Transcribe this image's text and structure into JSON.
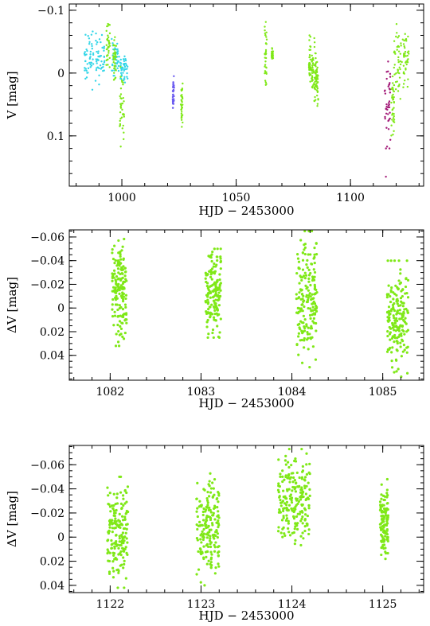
{
  "chart_data": [
    {
      "type": "scatter",
      "title": "",
      "xlabel": "HJD − 2453000",
      "ylabel": "V [mag]",
      "xlim": [
        977,
        1132
      ],
      "ylim": [
        0.18,
        -0.11
      ],
      "y_inverted": true,
      "grid": false,
      "legend": "none",
      "x_ticks": [
        1000,
        1050,
        1100
      ],
      "x_tick_labels": [
        "1000",
        "1050",
        "1100"
      ],
      "y_ticks": [
        -0.1,
        0,
        0.1
      ],
      "y_tick_labels": [
        "−0.1",
        "0",
        "0.1"
      ],
      "series": [
        {
          "color": "#33d6e8",
          "clusters": [
            {
              "x0": 983.5,
              "x1": 987.5,
              "y": [
                -0.08,
                0.03
              ]
            },
            {
              "x0": 988.5,
              "x1": 992.5,
              "y": [
                -0.07,
                0.025
              ]
            },
            {
              "x0": 995.5,
              "x1": 998.8,
              "y": [
                -0.06,
                0.01
              ]
            },
            {
              "x0": 999.2,
              "x1": 1002.5,
              "y": [
                -0.03,
                0.015
              ]
            }
          ]
        },
        {
          "color": "#7fe817",
          "clusters": [
            {
              "x0": 993.2,
              "x1": 994.8,
              "y": [
                -0.095,
                0.01
              ]
            },
            {
              "x0": 996.2,
              "x1": 997.5,
              "y": [
                -0.06,
                0.02
              ]
            },
            {
              "x0": 999.0,
              "x1": 1001.0,
              "y": [
                -0.01,
                0.14
              ]
            },
            {
              "x0": 1025.8,
              "x1": 1026.6,
              "y": [
                0.01,
                0.1
              ]
            },
            {
              "x0": 1062.5,
              "x1": 1063.4,
              "y": [
                -0.1,
                0.05
              ]
            },
            {
              "x0": 1065.5,
              "x1": 1066.2,
              "y": [
                -0.04,
                -0.02
              ]
            },
            {
              "x0": 1081.8,
              "x1": 1082.6,
              "y": [
                -0.06,
                0.03
              ]
            },
            {
              "x0": 1083.0,
              "x1": 1083.8,
              "y": [
                -0.04,
                0.03
              ]
            },
            {
              "x0": 1084.0,
              "x1": 1084.9,
              "y": [
                -0.06,
                0.07
              ]
            },
            {
              "x0": 1085.0,
              "x1": 1085.9,
              "y": [
                -0.03,
                0.06
              ]
            },
            {
              "x0": 1117.8,
              "x1": 1119.2,
              "y": [
                -0.01,
                0.12
              ]
            },
            {
              "x0": 1119.0,
              "x1": 1122.5,
              "y": [
                -0.08,
                0.05
              ]
            },
            {
              "x0": 1122.8,
              "x1": 1125.5,
              "y": [
                -0.07,
                0.03
              ]
            }
          ]
        },
        {
          "color": "#a31a78",
          "clusters": [
            {
              "x0": 1114.5,
              "x1": 1117.5,
              "y": [
                -0.02,
                0.12
              ]
            }
          ],
          "outliers": [
            {
              "x": 1115.5,
              "y": 0.165
            }
          ]
        },
        {
          "color": "#6a5af0",
          "clusters": [
            {
              "x0": 1022.2,
              "x1": 1022.9,
              "y": [
                0.005,
                0.065
              ]
            }
          ]
        }
      ]
    },
    {
      "type": "scatter",
      "title": "",
      "xlabel": "HJD − 2453000",
      "ylabel": "ΔV [mag]",
      "xlim": [
        1081.55,
        1085.45
      ],
      "ylim": [
        0.061,
        -0.066
      ],
      "y_inverted": true,
      "grid": false,
      "legend": "none",
      "x_ticks": [
        1082,
        1083,
        1084,
        1085
      ],
      "x_tick_labels": [
        "1082",
        "1083",
        "1084",
        "1085"
      ],
      "y_ticks": [
        -0.06,
        -0.04,
        -0.02,
        0,
        0.02,
        0.04
      ],
      "y_tick_labels": [
        "−0.06",
        "−0.04",
        "−0.02",
        "0",
        "0.02",
        "0.04"
      ],
      "series": [
        {
          "color": "#7fe817",
          "clusters": [
            {
              "x0": 1082.02,
              "x1": 1082.18,
              "y": [
                -0.065,
                0.032
              ]
            },
            {
              "x0": 1083.05,
              "x1": 1083.22,
              "y": [
                -0.05,
                0.025
              ]
            },
            {
              "x0": 1084.05,
              "x1": 1084.28,
              "y": [
                -0.065,
                0.05
              ]
            },
            {
              "x0": 1085.05,
              "x1": 1085.28,
              "y": [
                -0.04,
                0.058
              ]
            }
          ]
        }
      ]
    },
    {
      "type": "scatter",
      "title": "",
      "xlabel": "HJD − 2453000",
      "ylabel": "ΔV [mag]",
      "xlim": [
        1121.55,
        1125.45
      ],
      "ylim": [
        0.046,
        -0.076
      ],
      "y_inverted": true,
      "grid": false,
      "legend": "none",
      "x_ticks": [
        1122,
        1123,
        1124,
        1125
      ],
      "x_tick_labels": [
        "1122",
        "1123",
        "1124",
        "1125"
      ],
      "y_ticks": [
        -0.06,
        -0.04,
        -0.02,
        0,
        0.02,
        0.04
      ],
      "y_tick_labels": [
        "−0.06",
        "−0.04",
        "−0.02",
        "0",
        "0.02",
        "0.04"
      ],
      "series": [
        {
          "color": "#7fe817",
          "clusters": [
            {
              "x0": 1121.97,
              "x1": 1122.2,
              "y": [
                -0.05,
                0.042
              ]
            },
            {
              "x0": 1122.95,
              "x1": 1123.2,
              "y": [
                -0.057,
                0.04
              ]
            },
            {
              "x0": 1123.85,
              "x1": 1124.2,
              "y": [
                -0.073,
                0.013
              ]
            },
            {
              "x0": 1124.97,
              "x1": 1125.06,
              "y": [
                -0.048,
                0.02
              ]
            }
          ]
        }
      ]
    }
  ]
}
